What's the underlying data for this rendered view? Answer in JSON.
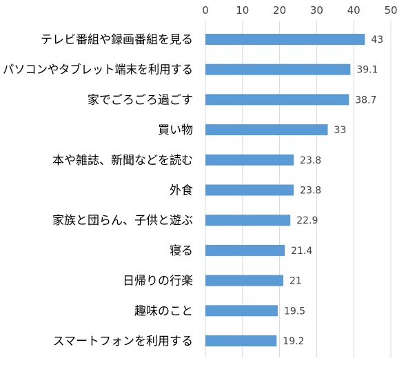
{
  "chart_data": {
    "type": "bar",
    "orientation": "horizontal",
    "categories": [
      "テレビ番組や録画番組を見る",
      "パソコンやタブレット端末を利用する",
      "家でごろごろ過ごす",
      "買い物",
      "本や雑誌、新聞などを読む",
      "外食",
      "家族と団らん、子供と遊ぶ",
      "寝る",
      "日帰りの行楽",
      "趣味のこと",
      "スマートフォンを利用する"
    ],
    "values": [
      43,
      39.1,
      38.7,
      33,
      23.8,
      23.8,
      22.9,
      21.4,
      21,
      19.5,
      19.2
    ],
    "value_labels": [
      "43",
      "39.1",
      "38.7",
      "33",
      "23.8",
      "23.8",
      "22.9",
      "21.4",
      "21",
      "19.5",
      "19.2"
    ],
    "xlim": [
      0,
      50
    ],
    "x_ticks": [
      "0",
      "10",
      "20",
      "30",
      "40",
      "50"
    ],
    "x_axis_position": "top",
    "grid": "vertical",
    "legend": "none",
    "title": "",
    "xlabel": "",
    "ylabel": "",
    "colors": {
      "bar": "#5B9BD5",
      "grid": "#D9D9D9",
      "text": "#404040",
      "category_text": "#000000"
    }
  }
}
